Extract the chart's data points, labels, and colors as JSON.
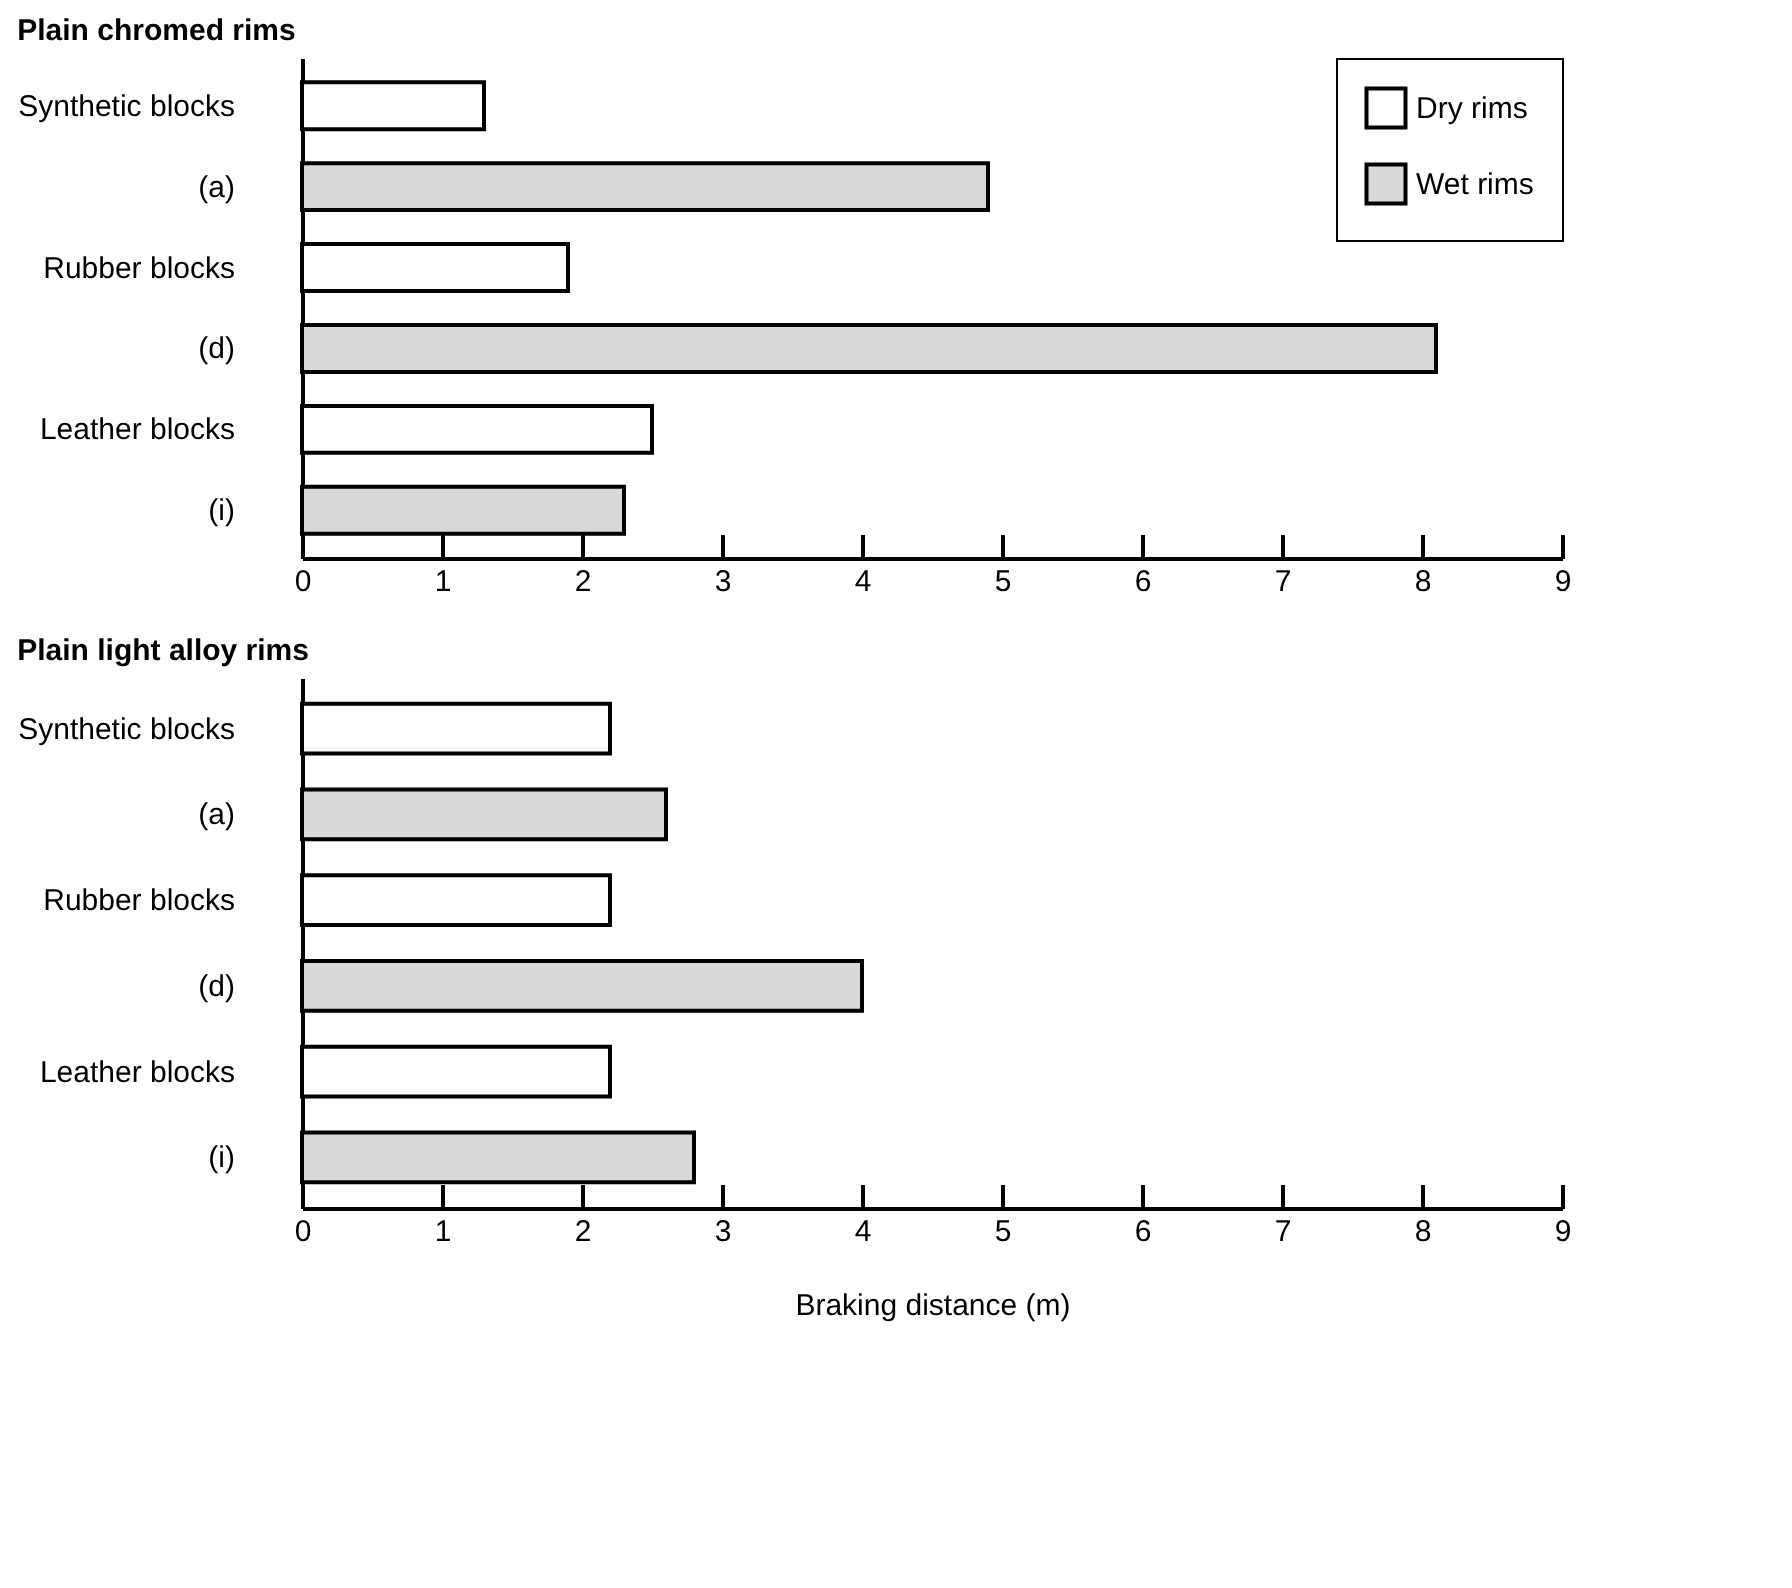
{
  "chart_data": [
    {
      "type": "bar",
      "orientation": "horizontal",
      "title": "Plain chromed rims",
      "categories": [
        "Synthetic blocks",
        "(a)",
        "Rubber blocks",
        "(d)",
        "Leather blocks",
        "(i)"
      ],
      "series": [
        {
          "name": "Dry rims",
          "color": "#ffffff",
          "values": [
            1.3,
            null,
            1.9,
            null,
            2.5,
            null
          ]
        },
        {
          "name": "Wet rims",
          "color": "#d9d9d9",
          "values": [
            null,
            4.9,
            null,
            8.1,
            null,
            2.3
          ]
        }
      ],
      "xlim": [
        0,
        9
      ],
      "xticks": [
        0,
        1,
        2,
        3,
        4,
        5,
        6,
        7,
        8,
        9
      ],
      "grid": false,
      "legend": "top right"
    },
    {
      "type": "bar",
      "orientation": "horizontal",
      "title": "Plain light alloy rims",
      "xlabel": "Braking distance (m)",
      "categories": [
        "Synthetic blocks",
        "(a)",
        "Rubber blocks",
        "(d)",
        "Leather blocks",
        "(i)"
      ],
      "series": [
        {
          "color": "#ffffff",
          "values": [
            2.2,
            null,
            2.2,
            null,
            2.2,
            null
          ]
        },
        {
          "color": "#d9d9d9",
          "values": [
            null,
            2.6,
            null,
            4.0,
            null,
            2.8
          ]
        }
      ],
      "xlim": [
        0,
        9
      ],
      "xticks": [
        0,
        1,
        2,
        3,
        4,
        5,
        6,
        7,
        8,
        9
      ],
      "grid": false,
      "legend": false
    }
  ]
}
